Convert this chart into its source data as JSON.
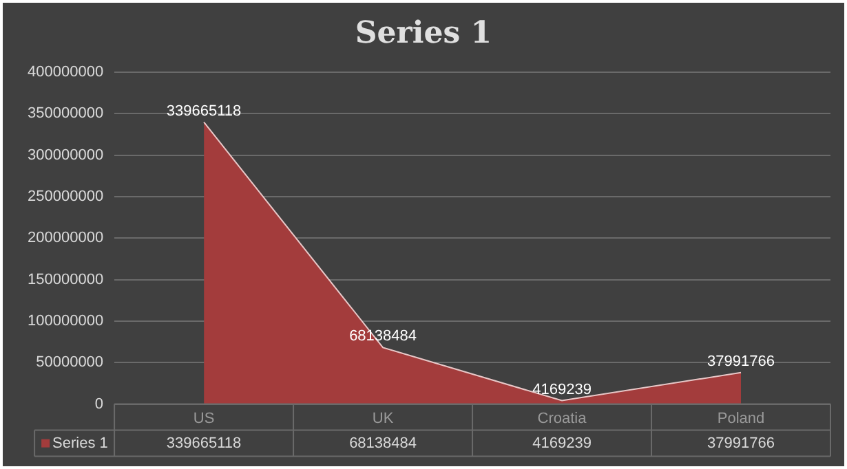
{
  "chart_data": {
    "type": "area",
    "title": "Series 1",
    "categories": [
      "US",
      "UK",
      "Croatia",
      "Poland"
    ],
    "series": [
      {
        "name": "Series 1",
        "color": "#a33c3c",
        "values": [
          339665118,
          68138484,
          4169239,
          37991766
        ]
      }
    ],
    "ylim": [
      0,
      400000000
    ],
    "yticks": [
      0,
      50000000,
      100000000,
      150000000,
      200000000,
      250000000,
      300000000,
      350000000,
      400000000
    ],
    "grid": "y",
    "legend": "bottom",
    "data_labels": true,
    "annotations": [
      "339665118",
      "68138484",
      "4169239",
      "37991766"
    ]
  }
}
